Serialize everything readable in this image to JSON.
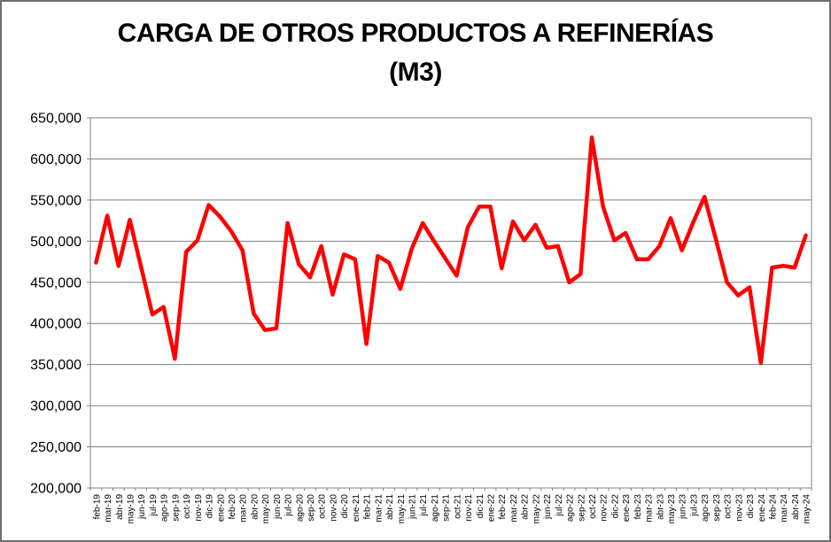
{
  "window": {
    "background": "#ffffff",
    "border_color": "#6e6e6e"
  },
  "chart_data": {
    "type": "line",
    "title": "CARGA DE OTROS PRODUCTOS A REFINERÍAS (M3)",
    "title_line1": "CARGA DE OTROS PRODUCTOS A REFINERÍAS",
    "title_line2": "(M3)",
    "xlabel": "",
    "ylabel": "",
    "ylim": [
      200000,
      650000
    ],
    "ytick_step": 50000,
    "ytick_labels": [
      "200,000",
      "250,000",
      "300,000",
      "350,000",
      "400,000",
      "450,000",
      "500,000",
      "550,000",
      "600,000",
      "650,000"
    ],
    "grid": true,
    "legend_position": "none",
    "line_color": "#FF0000",
    "gridline_color": "#808080",
    "axis_text_color": "#000000",
    "categories": [
      "feb-19",
      "mar-19",
      "abr-19",
      "may-19",
      "jun-19",
      "jul-19",
      "ago-19",
      "sep-19",
      "oct-19",
      "nov-19",
      "dic-19",
      "ene-20",
      "feb-20",
      "mar-20",
      "abr-20",
      "may-20",
      "jun-20",
      "jul-20",
      "ago-20",
      "sep-20",
      "oct-20",
      "nov-20",
      "dic-20",
      "ene-21",
      "feb-21",
      "mar-21",
      "abr-21",
      "may-21",
      "jun-21",
      "jul-21",
      "ago-21",
      "sep-21",
      "oct-21",
      "nov-21",
      "dic-21",
      "ene-22",
      "feb-22",
      "mar-22",
      "abr-22",
      "may-22",
      "jun-22",
      "jul-22",
      "ago-22",
      "sep-22",
      "oct-22",
      "nov-22",
      "dic-22",
      "ene-23",
      "feb-23",
      "mar-23",
      "abr-23",
      "may-23",
      "jun-23",
      "jul-23",
      "ago-23",
      "sep-23",
      "oct-23",
      "nov-23",
      "dic-23",
      "ene-24",
      "feb-24",
      "mar-24",
      "abr-24",
      "may-24"
    ],
    "values": [
      474000,
      531000,
      470000,
      526000,
      469000,
      411000,
      420000,
      357000,
      487000,
      501000,
      544000,
      530000,
      512000,
      489000,
      412000,
      392000,
      394000,
      522000,
      472000,
      456000,
      494000,
      435000,
      484000,
      478000,
      375000,
      482000,
      474000,
      442000,
      490000,
      522000,
      500000,
      479000,
      458000,
      517000,
      542000,
      542000,
      467000,
      524000,
      501000,
      520000,
      492000,
      494000,
      450000,
      460000,
      626000,
      542000,
      501000,
      510000,
      478000,
      478000,
      494000,
      528000,
      489000,
      523000,
      554000,
      503000,
      450000,
      434000,
      444000,
      352000,
      468000,
      470000,
      468000,
      507000
    ]
  }
}
